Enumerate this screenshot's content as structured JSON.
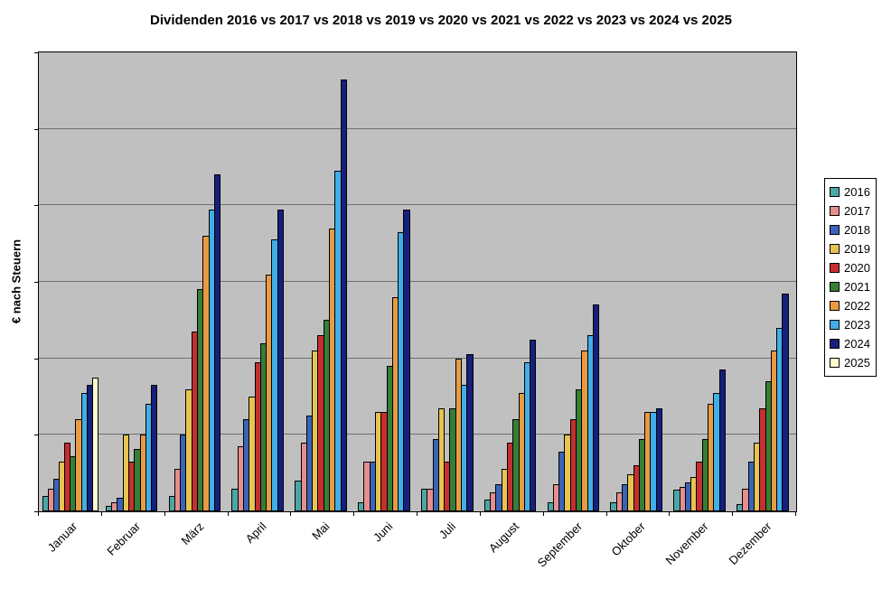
{
  "chart_data": {
    "type": "bar",
    "title": "Dividenden 2016 vs 2017 vs 2018 vs 2019 vs 2020 vs 2021 vs 2022 vs 2023 vs 2024 vs 2025",
    "xlabel": "",
    "ylabel": "€ nach Steuern",
    "categories": [
      "Januar",
      "Februar",
      "März",
      "April",
      "Mai",
      "Juni",
      "Juli",
      "August",
      "September",
      "Oktober",
      "November",
      "Dezember"
    ],
    "series": [
      {
        "name": "2016",
        "color": "#4da6a6",
        "values": [
          0.2,
          0.07,
          0.2,
          0.3,
          0.4,
          0.12,
          0.3,
          0.15,
          0.12,
          0.12,
          0.28,
          0.1
        ]
      },
      {
        "name": "2017",
        "color": "#e58e8e",
        "values": [
          0.3,
          0.12,
          0.55,
          0.85,
          0.9,
          0.65,
          0.3,
          0.25,
          0.35,
          0.25,
          0.32,
          0.3
        ]
      },
      {
        "name": "2018",
        "color": "#3a64b8",
        "values": [
          0.42,
          0.18,
          1.0,
          1.2,
          1.25,
          0.65,
          0.95,
          0.35,
          0.78,
          0.35,
          0.38,
          0.65
        ]
      },
      {
        "name": "2019",
        "color": "#e7c34f",
        "values": [
          0.65,
          1.0,
          1.6,
          1.5,
          2.1,
          1.3,
          1.35,
          0.55,
          1.0,
          0.48,
          0.45,
          0.9
        ]
      },
      {
        "name": "2020",
        "color": "#c62f2f",
        "values": [
          0.9,
          0.65,
          2.35,
          1.95,
          2.3,
          1.3,
          0.65,
          0.9,
          1.2,
          0.6,
          0.65,
          1.35
        ]
      },
      {
        "name": "2021",
        "color": "#357e38",
        "values": [
          0.72,
          0.82,
          2.9,
          2.2,
          2.5,
          1.9,
          1.35,
          1.2,
          1.6,
          0.95,
          0.95,
          1.7
        ]
      },
      {
        "name": "2022",
        "color": "#e89b41",
        "values": [
          1.2,
          1.0,
          3.6,
          3.1,
          3.7,
          2.8,
          2.0,
          1.55,
          2.1,
          1.3,
          1.4,
          2.1
        ]
      },
      {
        "name": "2023",
        "color": "#41aee8",
        "values": [
          1.55,
          1.4,
          3.95,
          3.55,
          4.45,
          3.65,
          1.65,
          1.95,
          2.3,
          1.3,
          1.55,
          2.4
        ]
      },
      {
        "name": "2024",
        "color": "#151f7c",
        "values": [
          1.65,
          1.65,
          4.4,
          3.95,
          5.65,
          3.95,
          2.05,
          2.25,
          2.7,
          1.35,
          1.85,
          2.85
        ]
      },
      {
        "name": "2025",
        "color": "#fdfbd0",
        "values": [
          1.75,
          null,
          null,
          null,
          null,
          null,
          null,
          null,
          null,
          null,
          null,
          null
        ]
      }
    ],
    "ylim": [
      0,
      6
    ],
    "y_axis_tick_labels": "none",
    "grid": "horizontal gridlines, unlabeled; values estimated in gridline units (1 unit = one gridline interval)",
    "legend_position": "right",
    "plot_background": "#c0c0c0"
  }
}
